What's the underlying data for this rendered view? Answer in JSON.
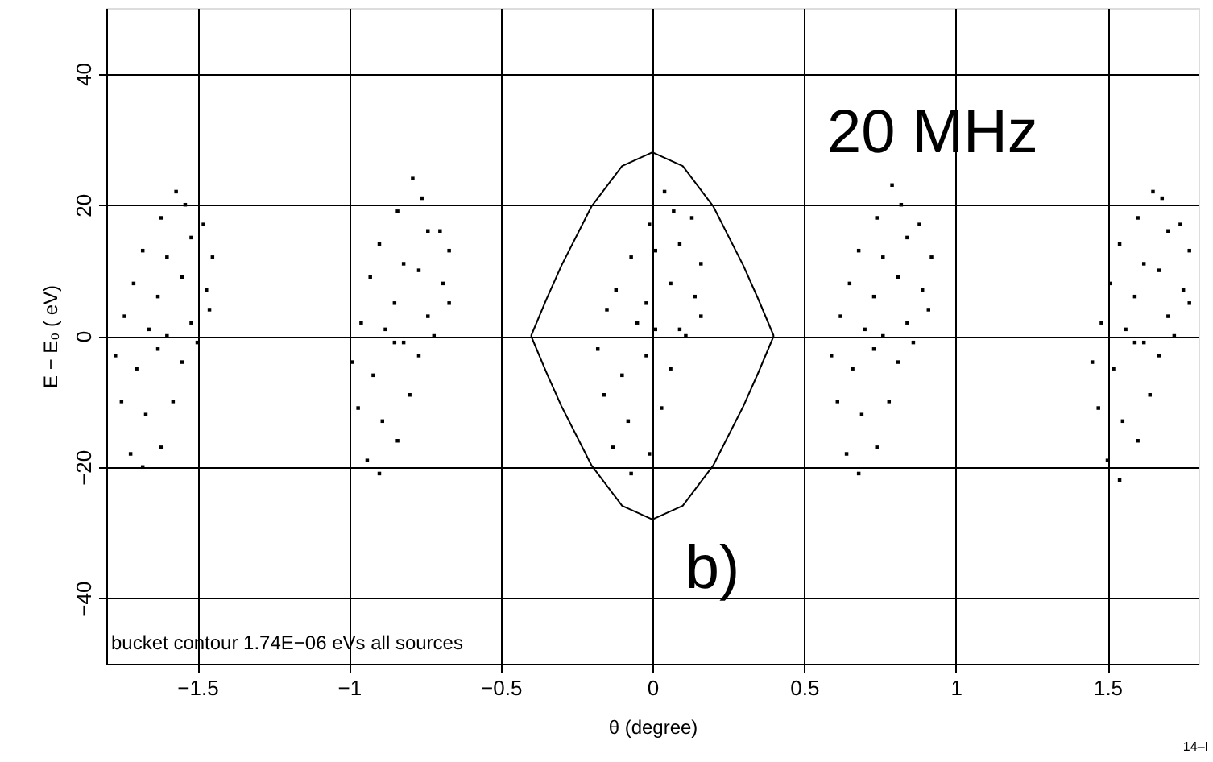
{
  "chart_data": {
    "type": "scatter",
    "xlabel": "θ (degree)",
    "ylabel": "E − E₀   ( eV)",
    "xlim": [
      -1.8,
      1.8
    ],
    "xticks": [
      -1.5,
      -1,
      -0.5,
      0,
      0.5,
      1,
      1.5
    ],
    "ylim": [
      -50,
      50
    ],
    "yticks": [
      -40,
      -20,
      0,
      20,
      40
    ],
    "grid": true,
    "annotations": [
      "20 MHz",
      "b)",
      "bucket contour 1.74E−06 eVs all sources",
      "14–I"
    ],
    "series": [
      {
        "color": "#000000",
        "marker": "square",
        "x": [
          -1.72,
          -1.68,
          -1.62,
          -1.75,
          -1.67,
          -1.58,
          -1.77,
          -1.7,
          -1.63,
          -1.55,
          -1.5,
          -1.74,
          -1.66,
          -1.6,
          -1.52,
          -1.46,
          -1.71,
          -1.63,
          -1.55,
          -1.47,
          -1.68,
          -1.6,
          -1.52,
          -1.45,
          -1.62,
          -1.54,
          -1.48,
          -1.57,
          -0.94,
          -0.9,
          -0.84,
          -0.97,
          -0.89,
          -0.8,
          -0.99,
          -0.92,
          -0.85,
          -0.77,
          -0.72,
          -0.96,
          -0.88,
          -0.82,
          -0.74,
          -0.67,
          -0.93,
          -0.85,
          -0.77,
          -0.69,
          -0.9,
          -0.82,
          -0.74,
          -0.67,
          -0.84,
          -0.76,
          -0.7,
          -0.79,
          -0.13,
          -0.07,
          -0.01,
          -0.16,
          -0.08,
          0.03,
          -0.18,
          -0.1,
          -0.02,
          0.06,
          0.11,
          -0.15,
          -0.05,
          0.01,
          0.09,
          0.16,
          -0.12,
          -0.02,
          0.06,
          0.14,
          -0.07,
          0.01,
          0.09,
          0.16,
          -0.01,
          0.07,
          0.13,
          0.04,
          0.64,
          0.68,
          0.74,
          0.61,
          0.69,
          0.78,
          0.59,
          0.66,
          0.73,
          0.81,
          0.86,
          0.62,
          0.7,
          0.76,
          0.84,
          0.91,
          0.65,
          0.73,
          0.81,
          0.89,
          0.68,
          0.76,
          0.84,
          0.92,
          0.74,
          0.82,
          0.88,
          0.79,
          1.5,
          1.54,
          1.6,
          1.47,
          1.55,
          1.64,
          1.45,
          1.52,
          1.59,
          1.67,
          1.72,
          1.48,
          1.56,
          1.62,
          1.7,
          1.77,
          1.51,
          1.59,
          1.67,
          1.75,
          1.54,
          1.62,
          1.7,
          1.77,
          1.6,
          1.68,
          1.74,
          1.65
        ],
        "values": [
          -18,
          -20,
          -17,
          -10,
          -12,
          -10,
          -3,
          -5,
          -2,
          -4,
          -1,
          3,
          1,
          0,
          2,
          4,
          8,
          6,
          9,
          7,
          13,
          12,
          15,
          12,
          18,
          20,
          17,
          22,
          -19,
          -21,
          -16,
          -11,
          -13,
          -9,
          -4,
          -6,
          -1,
          -3,
          0,
          2,
          1,
          -1,
          3,
          5,
          9,
          5,
          10,
          8,
          14,
          11,
          16,
          13,
          19,
          21,
          16,
          24,
          -17,
          -21,
          -18,
          -9,
          -13,
          -11,
          -2,
          -6,
          -3,
          -5,
          0,
          4,
          2,
          1,
          1,
          3,
          7,
          5,
          8,
          6,
          12,
          13,
          14,
          11,
          17,
          19,
          18,
          22,
          -18,
          -21,
          -17,
          -10,
          -12,
          -10,
          -3,
          -5,
          -2,
          -4,
          -1,
          3,
          1,
          0,
          2,
          4,
          8,
          6,
          9,
          7,
          13,
          12,
          15,
          12,
          18,
          20,
          17,
          23,
          -19,
          -22,
          -16,
          -11,
          -13,
          -9,
          -4,
          -5,
          -1,
          -3,
          0,
          2,
          1,
          -1,
          3,
          5,
          8,
          6,
          10,
          7,
          14,
          11,
          16,
          13,
          18,
          21,
          17,
          22
        ]
      },
      {
        "type": "line",
        "color": "#000000",
        "marker": "none",
        "x": [
          -0.4,
          -0.35,
          -0.3,
          -0.2,
          -0.1,
          0,
          0.1,
          0.2,
          0.3,
          0.35,
          0.4
        ],
        "values": [
          0,
          5.5,
          10.7,
          19.8,
          25.9,
          28,
          25.9,
          19.8,
          10.7,
          5.5,
          0
        ]
      },
      {
        "type": "line",
        "color": "#000000",
        "marker": "none",
        "x": [
          -0.4,
          -0.35,
          -0.3,
          -0.2,
          -0.1,
          0,
          0.1,
          0.2,
          0.3,
          0.35,
          0.4
        ],
        "values": [
          0,
          -5.5,
          -10.7,
          -19.8,
          -25.9,
          -28,
          -25.9,
          -19.8,
          -10.7,
          -5.5,
          0
        ]
      }
    ]
  }
}
